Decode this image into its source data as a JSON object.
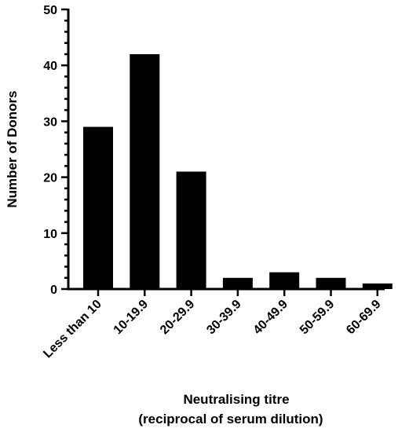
{
  "chart_data": {
    "type": "bar",
    "categories": [
      "Less than 10",
      "10-19.9",
      "20-29.9",
      "30-39.9",
      "40-49.9",
      "50-59.9",
      "60-69.9"
    ],
    "values": [
      29,
      42,
      21,
      2,
      3,
      2,
      1
    ],
    "ylabel": "Number of Donors",
    "xlabel_line1": "Neutralising titre",
    "xlabel_line2": "(reciprocal of serum dilution)",
    "ylim": [
      0,
      50
    ],
    "yticks": [
      0,
      10,
      20,
      30,
      40,
      50
    ],
    "grid": false,
    "bar_color": "#000000"
  }
}
